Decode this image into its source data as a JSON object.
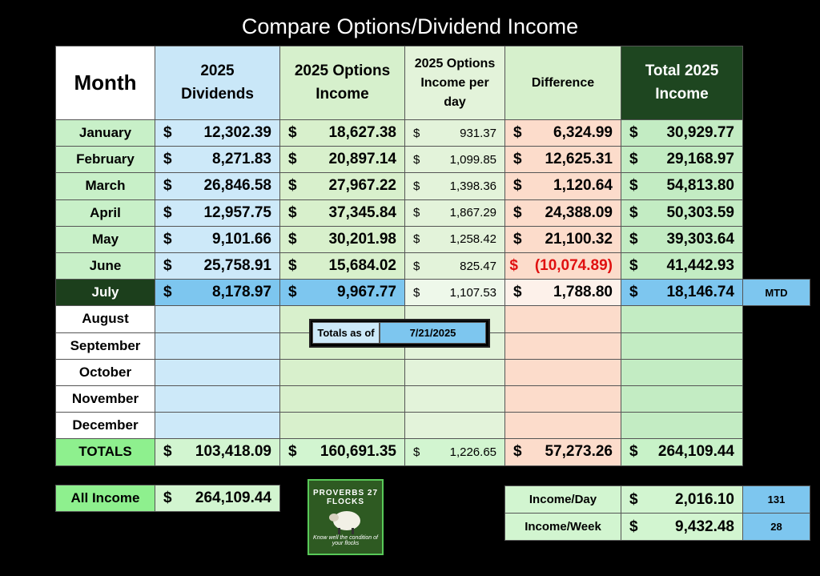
{
  "title": "Compare Options/Dividend Income",
  "currency": "$",
  "table": {
    "headers": [
      "Month",
      "2025 Dividends",
      "2025 Options Income",
      "2025 Options Income per day",
      "Difference",
      "Total 2025 Income"
    ],
    "rows": [
      [
        "January",
        "12,302.39",
        "18,627.38",
        "931.37",
        "6,324.99",
        "30,929.77"
      ],
      [
        "February",
        "8,271.83",
        "20,897.14",
        "1,099.85",
        "12,625.31",
        "29,168.97"
      ],
      [
        "March",
        "26,846.58",
        "27,967.22",
        "1,398.36",
        "1,120.64",
        "54,813.80"
      ],
      [
        "April",
        "12,957.75",
        "37,345.84",
        "1,867.29",
        "24,388.09",
        "50,303.59"
      ],
      [
        "May",
        "9,101.66",
        "30,201.98",
        "1,258.42",
        "21,100.32",
        "39,303.64"
      ],
      [
        "June",
        "25,758.91",
        "15,684.02",
        "825.47",
        "(10,074.89)",
        "41,442.93"
      ],
      [
        "July",
        "8,178.97",
        "9,967.77",
        "1,107.53",
        "1,788.80",
        "18,146.74"
      ],
      [
        "August"
      ],
      [
        "September"
      ],
      [
        "October"
      ],
      [
        "November"
      ],
      [
        "December"
      ]
    ],
    "totals": [
      "TOTALS",
      "103,418.09",
      "160,691.35",
      "1,226.65",
      "57,273.26",
      "264,109.44"
    ],
    "mtd": "MTD"
  },
  "totals_as_of": {
    "label": "Totals as of",
    "date": "7/21/2025"
  },
  "summary": {
    "all_income": {
      "label": "All Income",
      "value": "264,109.44"
    },
    "income_day": {
      "label": "Income/Day",
      "value": "2,016.10",
      "count": "131"
    },
    "income_week": {
      "label": "Income/Week",
      "value": "9,432.48",
      "count": "28"
    }
  },
  "logo": {
    "name": "PROVERBS 27 FLOCKS",
    "motto": "Know well the condition of your flocks"
  }
}
